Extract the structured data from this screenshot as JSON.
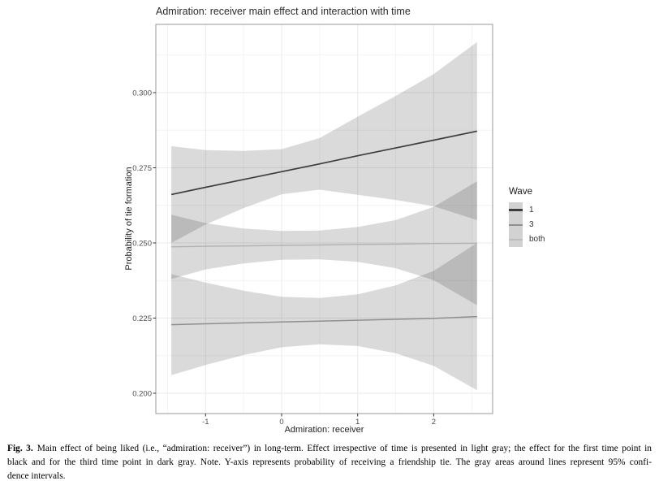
{
  "figure": {
    "title": "Admiration: receiver main effect and interaction with time",
    "x_axis": {
      "label": "Admiration: receiver",
      "tick_labels": [
        "-1",
        "0",
        "1",
        "2"
      ],
      "tick_values": [
        -1,
        0,
        1,
        2
      ],
      "minor_gridlines": [
        -1.5,
        -0.5,
        0.5,
        1.5,
        2.5
      ]
    },
    "y_axis": {
      "label": "Probability of tie formation",
      "tick_labels": [
        "0.200",
        "0.225",
        "0.250",
        "0.275",
        "0.300"
      ],
      "tick_values": [
        0.2,
        0.225,
        0.25,
        0.275,
        0.3
      ],
      "minor_gridlines": [
        0.2125,
        0.2375,
        0.2625,
        0.2875,
        0.3125
      ]
    },
    "legend": {
      "title": "Wave",
      "key_fill": "#d2d2d2",
      "entries": [
        {
          "label": "1",
          "color": "#3d3d3d",
          "thickness": 3
        },
        {
          "label": "3",
          "color": "#8f8f8f",
          "thickness": 2
        },
        {
          "label": "both",
          "color": "#bdbdbd",
          "thickness": 2
        }
      ]
    },
    "panel_border_color": "#9a9a9a",
    "major_grid_color": "#eaeaea",
    "minor_grid_color": "#f4f4f4",
    "tick_mark_color": "#333333",
    "tick_label_color": "#4d4d4d"
  },
  "chart_data": {
    "type": "line",
    "title": "Admiration: receiver main effect and interaction with time",
    "xlabel": "Admiration: receiver",
    "ylabel": "Probability of tie formation",
    "xlim": [
      -1.65,
      2.78
    ],
    "ylim": [
      0.193,
      0.323
    ],
    "grid": true,
    "legend_position": "right",
    "ci_level": "95%",
    "band_fill": "rgba(0,0,0,0.145)",
    "x": [
      -1.45,
      -1,
      -0.5,
      0,
      0.5,
      1,
      1.5,
      2,
      2.57
    ],
    "series": [
      {
        "name": "1",
        "color": "#3d3d3d",
        "width": 1.7,
        "line": [
          0.2661,
          0.2685,
          0.2711,
          0.2737,
          0.2763,
          0.279,
          0.2816,
          0.2842,
          0.2872
        ],
        "upper": [
          0.2822,
          0.2809,
          0.2806,
          0.2812,
          0.2849,
          0.292,
          0.2989,
          0.3062,
          0.3168
        ],
        "lower": [
          0.25,
          0.2561,
          0.2616,
          0.2662,
          0.2677,
          0.266,
          0.2643,
          0.2622,
          0.2576
        ]
      },
      {
        "name": "3",
        "color": "#8f8f8f",
        "width": 1.5,
        "line": [
          0.2228,
          0.2231,
          0.2234,
          0.2237,
          0.224,
          0.2243,
          0.2246,
          0.2249,
          0.2255
        ],
        "upper": [
          0.2396,
          0.2368,
          0.2341,
          0.2321,
          0.2317,
          0.2329,
          0.2359,
          0.2407,
          0.25
        ],
        "lower": [
          0.206,
          0.2094,
          0.2127,
          0.2153,
          0.2163,
          0.2157,
          0.2133,
          0.2091,
          0.201
        ]
      },
      {
        "name": "both",
        "color": "#b2b2b2",
        "width": 1.4,
        "line": [
          0.2487,
          0.2489,
          0.249,
          0.2492,
          0.2493,
          0.2495,
          0.2496,
          0.2498,
          0.2499
        ],
        "upper": [
          0.2594,
          0.2566,
          0.2548,
          0.254,
          0.2541,
          0.2553,
          0.2576,
          0.262,
          0.2705
        ],
        "lower": [
          0.238,
          0.2412,
          0.2432,
          0.2444,
          0.2445,
          0.2437,
          0.2416,
          0.2376,
          0.2293
        ]
      }
    ]
  },
  "caption": {
    "fig_label": "Fig. 3.",
    "line1": "Main effect of being liked (i.e., “admiration: receiver”) in long-term. Effect irrespective of time is presented in light gray; the effect for the first time point in",
    "line2": "black and for the third time point in dark gray. Note. Y-axis represents probability of receiving a friendship tie. The gray areas around lines represent 95% confi-",
    "line3": "dence intervals."
  }
}
